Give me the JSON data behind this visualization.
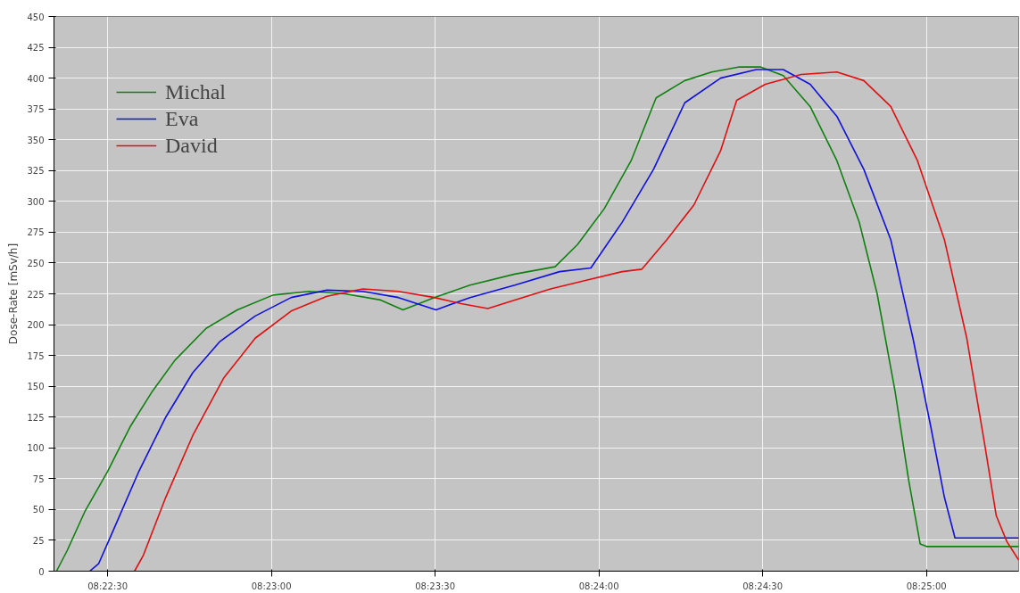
{
  "chart_data": {
    "type": "line",
    "ylabel": "Dose-Rate [mSv/h]",
    "xlim": [
      8.37227,
      8.42136
    ],
    "ylim": [
      0,
      450
    ],
    "xticks": [
      {
        "value": 8.375,
        "label": "08:22:30"
      },
      {
        "value": 8.383333,
        "label": "08:23:00"
      },
      {
        "value": 8.391667,
        "label": "08:23:30"
      },
      {
        "value": 8.4,
        "label": "08:24:00"
      },
      {
        "value": 8.408333,
        "label": "08:24:30"
      },
      {
        "value": 8.416667,
        "label": "08:25:00"
      }
    ],
    "yticks": [
      0,
      25,
      50,
      75,
      100,
      125,
      150,
      175,
      200,
      225,
      250,
      275,
      300,
      325,
      350,
      375,
      400,
      425,
      450
    ],
    "grid": true,
    "legend": "top left",
    "marker": "none",
    "line_style": "solid",
    "series": [
      {
        "name": "Michal",
        "color": "#108010",
        "x": [
          8.3724,
          8.37295,
          8.37386,
          8.375,
          8.37614,
          8.37728,
          8.37842,
          8.38001,
          8.3816,
          8.38342,
          8.38525,
          8.38707,
          8.38889,
          8.39003,
          8.39162,
          8.39344,
          8.39572,
          8.39777,
          8.39891,
          8.40027,
          8.40164,
          8.40291,
          8.40437,
          8.40574,
          8.4071,
          8.40824,
          8.40938,
          8.41075,
          8.41211,
          8.41325,
          8.41416,
          8.41507,
          8.41576,
          8.41635,
          8.41667,
          8.42136
        ],
        "values": [
          0,
          17,
          49,
          81,
          117,
          146,
          171,
          197,
          212,
          224,
          227,
          225,
          220,
          212,
          222,
          232,
          241,
          247,
          265,
          294,
          333,
          384,
          398,
          405,
          409,
          409,
          402,
          377,
          333,
          283,
          225,
          146,
          74,
          22,
          20,
          20
        ]
      },
      {
        "name": "Eva",
        "color": "#1010e0",
        "x": [
          8.37409,
          8.37454,
          8.37523,
          8.37659,
          8.37796,
          8.37933,
          8.38069,
          8.38251,
          8.38434,
          8.38616,
          8.38798,
          8.3898,
          8.39171,
          8.39344,
          8.39572,
          8.398,
          8.39959,
          8.40118,
          8.40278,
          8.40437,
          8.40619,
          8.40801,
          8.40938,
          8.41075,
          8.41211,
          8.41348,
          8.41485,
          8.41598,
          8.41689,
          8.41758,
          8.41812,
          8.42136
        ],
        "values": [
          0,
          6,
          31,
          81,
          125,
          161,
          186,
          207,
          222,
          228,
          227,
          222,
          212,
          222,
          232,
          243,
          246,
          283,
          326,
          380,
          400,
          407,
          407,
          395,
          369,
          326,
          269,
          189,
          117,
          60,
          27,
          27
        ]
      },
      {
        "name": "David",
        "color": "#e01010",
        "x": [
          8.37637,
          8.37682,
          8.37796,
          8.37933,
          8.38092,
          8.38251,
          8.38434,
          8.38616,
          8.38798,
          8.3898,
          8.39162,
          8.39299,
          8.39435,
          8.39572,
          8.39754,
          8.39936,
          8.40118,
          8.40219,
          8.40346,
          8.40483,
          8.40619,
          8.40701,
          8.40847,
          8.41029,
          8.41211,
          8.41348,
          8.41485,
          8.41621,
          8.41758,
          8.41872,
          8.41963,
          8.42022,
          8.42076,
          8.42136
        ],
        "values": [
          0,
          13,
          60,
          110,
          157,
          189,
          211,
          223,
          229,
          227,
          222,
          217,
          213,
          220,
          229,
          236,
          243,
          245,
          269,
          297,
          341,
          382,
          395,
          403,
          405,
          398,
          377,
          333,
          269,
          189,
          103,
          45,
          24,
          9
        ]
      }
    ]
  }
}
